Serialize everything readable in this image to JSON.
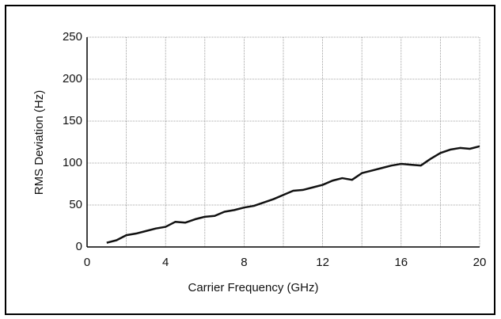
{
  "chart_data": {
    "type": "line",
    "xlabel": "Carrier Frequency (GHz)",
    "ylabel": "RMS Deviation (Hz)",
    "x": [
      1,
      1.5,
      2,
      2.5,
      3,
      3.5,
      4,
      4.5,
      5,
      5.5,
      6,
      6.5,
      7,
      7.5,
      8,
      8.5,
      9,
      9.5,
      10,
      10.5,
      11,
      11.5,
      12,
      12.5,
      13,
      13.5,
      14,
      14.5,
      15,
      15.5,
      16,
      16.5,
      17,
      17.5,
      18,
      18.5,
      19,
      19.5,
      20
    ],
    "series": [
      {
        "color": "#111111",
        "values": [
          5,
          8,
          14,
          16,
          19,
          22,
          24,
          30,
          29,
          33,
          36,
          37,
          42,
          44,
          47,
          49,
          53,
          57,
          62,
          67,
          68,
          71,
          74,
          79,
          82,
          80,
          88,
          91,
          94,
          97,
          99,
          98,
          97,
          105,
          112,
          116,
          118,
          117,
          120
        ]
      }
    ],
    "xlim": [
      0,
      20
    ],
    "xticks": [
      0,
      4,
      8,
      12,
      16,
      20
    ],
    "minor_xticks": [
      2,
      6,
      10,
      14,
      18
    ],
    "ylim": [
      0,
      250
    ],
    "yticks": [
      0,
      50,
      100,
      150,
      200,
      250
    ],
    "grid": true
  }
}
